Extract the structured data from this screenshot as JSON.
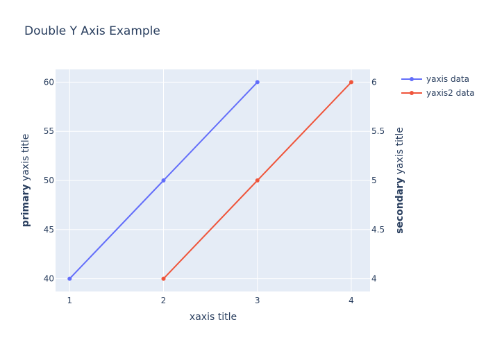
{
  "chart_data": {
    "type": "line",
    "title": "Double Y Axis Example",
    "xlabel": "xaxis title",
    "xlim": [
      0.85,
      4.2
    ],
    "x_ticks": [
      "1",
      "2",
      "3",
      "4"
    ],
    "y_primary": {
      "title_bold": "primary",
      "title_rest": " yaxis title",
      "lim": [
        38.7,
        61.3
      ],
      "ticks": [
        "40",
        "45",
        "50",
        "55",
        "60"
      ]
    },
    "y_secondary": {
      "title_bold": "secondary",
      "title_rest": " yaxis title",
      "lim": [
        3.87,
        6.13
      ],
      "ticks": [
        "4",
        "4.5",
        "5",
        "5.5",
        "6"
      ]
    },
    "series": [
      {
        "name": "yaxis data",
        "axis": "y1",
        "color": "#636efa",
        "x": [
          1,
          2,
          3
        ],
        "y": [
          40,
          50,
          60
        ]
      },
      {
        "name": "yaxis2 data",
        "axis": "y2",
        "color": "#ef553b",
        "x": [
          2,
          3,
          4
        ],
        "y": [
          4,
          5,
          6
        ]
      }
    ],
    "legend_position": "top-right",
    "grid": true,
    "plot_bgcolor": "#e5ecf6",
    "gridcolor": "#ffffff"
  }
}
